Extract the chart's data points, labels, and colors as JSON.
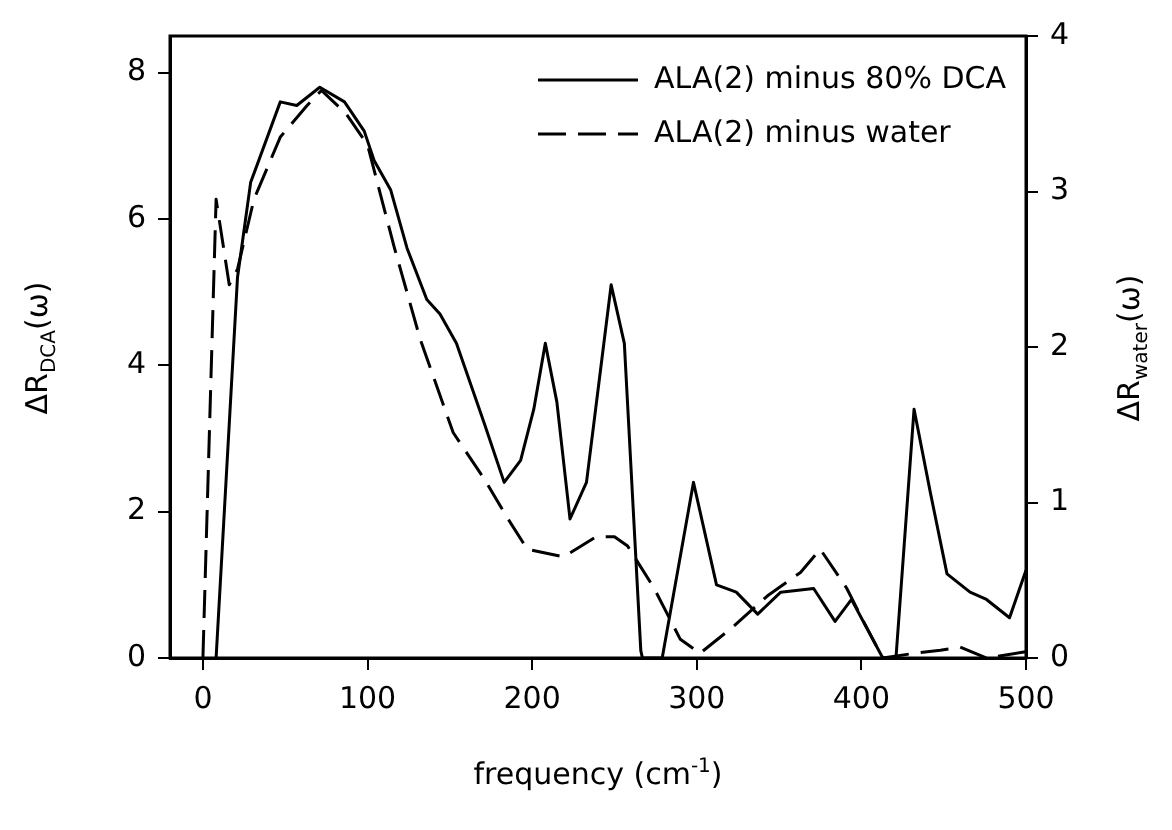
{
  "chart_data": {
    "type": "line",
    "xlabel": "frequency (cm$^{-1}$)",
    "ylabel": "ΔR$_{DCA}$(ω)",
    "y2label": "ΔR$_{water}$(ω)",
    "xlim": [
      -20,
      500
    ],
    "xticks": [
      0,
      100,
      200,
      300,
      400,
      500
    ],
    "ylim": [
      0,
      8.5
    ],
    "yticks": [
      0,
      2,
      4,
      6,
      8
    ],
    "y2lim": [
      0,
      4
    ],
    "y2ticks": [
      0,
      1,
      2,
      3,
      4
    ],
    "grid": false,
    "legend": "top right",
    "marker": "none",
    "series": [
      {
        "name": "ALA(2) minus 80% DCA",
        "color": "#000000",
        "line_style": "solid",
        "x": [
          8,
          21,
          29,
          47,
          57,
          71,
          86,
          98,
          104,
          114,
          124,
          136,
          144,
          154,
          171,
          183,
          193,
          201,
          208,
          215,
          223,
          233,
          248,
          256,
          266,
          267,
          279,
          298,
          312,
          324,
          337,
          351,
          371,
          384,
          394,
          413,
          421,
          432,
          442,
          452,
          466,
          476,
          490,
          500
        ],
        "values": [
          0,
          5.2,
          6.5,
          7.6,
          7.55,
          7.8,
          7.6,
          7.2,
          6.8,
          6.4,
          5.6,
          4.9,
          4.7,
          4.3,
          3.2,
          2.4,
          2.7,
          3.4,
          4.3,
          3.5,
          1.9,
          2.4,
          5.1,
          4.3,
          0.1,
          0,
          0,
          2.4,
          1.0,
          0.9,
          0.6,
          0.9,
          0.95,
          0.5,
          0.8,
          0,
          0,
          3.4,
          2.25,
          1.15,
          0.9,
          0.8,
          0.55,
          1.2
        ]
      },
      {
        "name": "ALA(2) minus water",
        "color": "#000000",
        "line_style": "dashed",
        "axis": "y2",
        "x": [
          0,
          8,
          16,
          21,
          31,
          47,
          63,
          72,
          87,
          100,
          116,
          132,
          152,
          171,
          185,
          197,
          219,
          239,
          250,
          258,
          274,
          290,
          302,
          322,
          343,
          363,
          375,
          391,
          403,
          413,
          432,
          448,
          460,
          476,
          500
        ],
        "values": [
          0,
          2.95,
          2.4,
          2.5,
          2.95,
          3.35,
          3.55,
          3.65,
          3.5,
          3.3,
          2.65,
          2.05,
          1.45,
          1.15,
          0.9,
          0.7,
          0.65,
          0.78,
          0.78,
          0.72,
          0.45,
          0.12,
          0.03,
          0.2,
          0.4,
          0.55,
          0.7,
          0.45,
          0.2,
          0,
          0.03,
          0.05,
          0.07,
          0,
          0.04
        ]
      }
    ]
  }
}
